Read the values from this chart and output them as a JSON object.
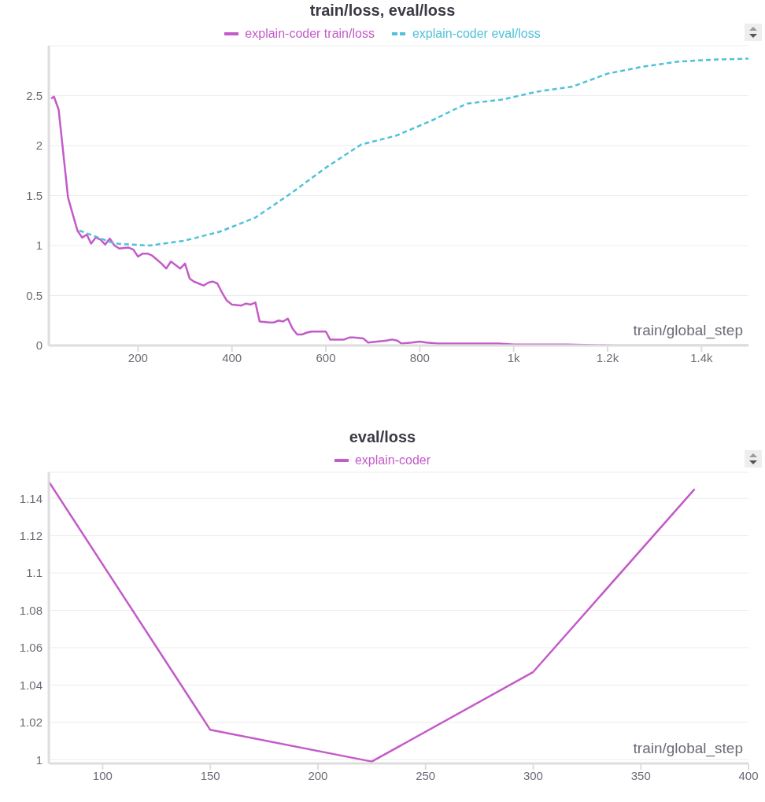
{
  "chart_data": [
    {
      "type": "line",
      "title": "train/loss, eval/loss",
      "xlabel": "train/global_step",
      "xlim": [
        10,
        1500
      ],
      "ylim": [
        0,
        3
      ],
      "xticks": [
        200,
        400,
        600,
        800,
        {
          "value": 1000,
          "label": "1k"
        },
        {
          "value": 1200,
          "label": "1.2k"
        },
        {
          "value": 1400,
          "label": "1.4k"
        }
      ],
      "yticks": [
        0,
        0.5,
        1,
        1.5,
        2,
        2.5
      ],
      "grid": "y",
      "legend": "top",
      "series": [
        {
          "name": "explain-coder train/loss",
          "color": "#c35bc9",
          "line_style": "solid",
          "x": [
            15,
            21,
            31,
            51,
            60,
            71,
            81,
            91,
            100,
            110,
            120,
            130,
            140,
            150,
            160,
            180,
            190,
            200,
            210,
            220,
            230,
            240,
            250,
            260,
            270,
            290,
            300,
            310,
            319,
            340,
            350,
            359,
            369,
            380,
            389,
            400,
            420,
            430,
            440,
            450,
            459,
            480,
            489,
            499,
            509,
            519,
            529,
            539,
            549,
            560,
            570,
            600,
            609,
            629,
            639,
            650,
            659,
            680,
            690,
            709,
            729,
            741,
            752,
            761,
            783,
            800,
            814,
            839,
            889,
            968,
            1001,
            1046,
            1113,
            1213,
            1325,
            1500
          ],
          "values": [
            2.47,
            2.49,
            2.36,
            1.48,
            1.33,
            1.15,
            1.08,
            1.11,
            1.02,
            1.08,
            1.06,
            1.01,
            1.07,
            1.0,
            0.97,
            0.98,
            0.96,
            0.89,
            0.92,
            0.92,
            0.9,
            0.86,
            0.82,
            0.77,
            0.84,
            0.77,
            0.82,
            0.67,
            0.64,
            0.6,
            0.63,
            0.64,
            0.62,
            0.52,
            0.45,
            0.41,
            0.4,
            0.42,
            0.41,
            0.43,
            0.24,
            0.23,
            0.23,
            0.25,
            0.24,
            0.27,
            0.17,
            0.11,
            0.11,
            0.13,
            0.14,
            0.14,
            0.06,
            0.06,
            0.06,
            0.08,
            0.08,
            0.07,
            0.03,
            0.04,
            0.05,
            0.06,
            0.05,
            0.02,
            0.03,
            0.04,
            0.03,
            0.02,
            0.02,
            0.02,
            0.01,
            0.01,
            0.01,
            0.0,
            0.0,
            0.0
          ]
        },
        {
          "name": "explain-coder eval/loss",
          "color": "#4fc1d9",
          "line_style": "dashed",
          "x": [
            75,
            150,
            225,
            300,
            375,
            450,
            525,
            600,
            675,
            750,
            825,
            900,
            975,
            1050,
            1125,
            1200,
            1275,
            1350,
            1425,
            1500
          ],
          "values": [
            1.15,
            1.02,
            1.0,
            1.05,
            1.14,
            1.28,
            1.52,
            1.78,
            2.01,
            2.1,
            2.25,
            2.42,
            2.46,
            2.54,
            2.59,
            2.72,
            2.79,
            2.84,
            2.86,
            2.87
          ]
        }
      ]
    },
    {
      "type": "line",
      "title": "eval/loss",
      "xlabel": "train/global_step",
      "xlim": [
        75,
        400
      ],
      "ylim": [
        0.998,
        1.154
      ],
      "xticks": [
        100,
        150,
        200,
        250,
        300,
        350,
        400
      ],
      "yticks": [
        1,
        1.02,
        1.04,
        1.06,
        1.08,
        1.1,
        1.12,
        1.14
      ],
      "grid": "y",
      "legend": "top",
      "series": [
        {
          "name": "explain-coder",
          "color": "#c35bc9",
          "line_style": "solid",
          "x": [
            75,
            150,
            225,
            300,
            375
          ],
          "values": [
            1.149,
            1.016,
            0.999,
            1.047,
            1.145
          ]
        }
      ]
    }
  ]
}
